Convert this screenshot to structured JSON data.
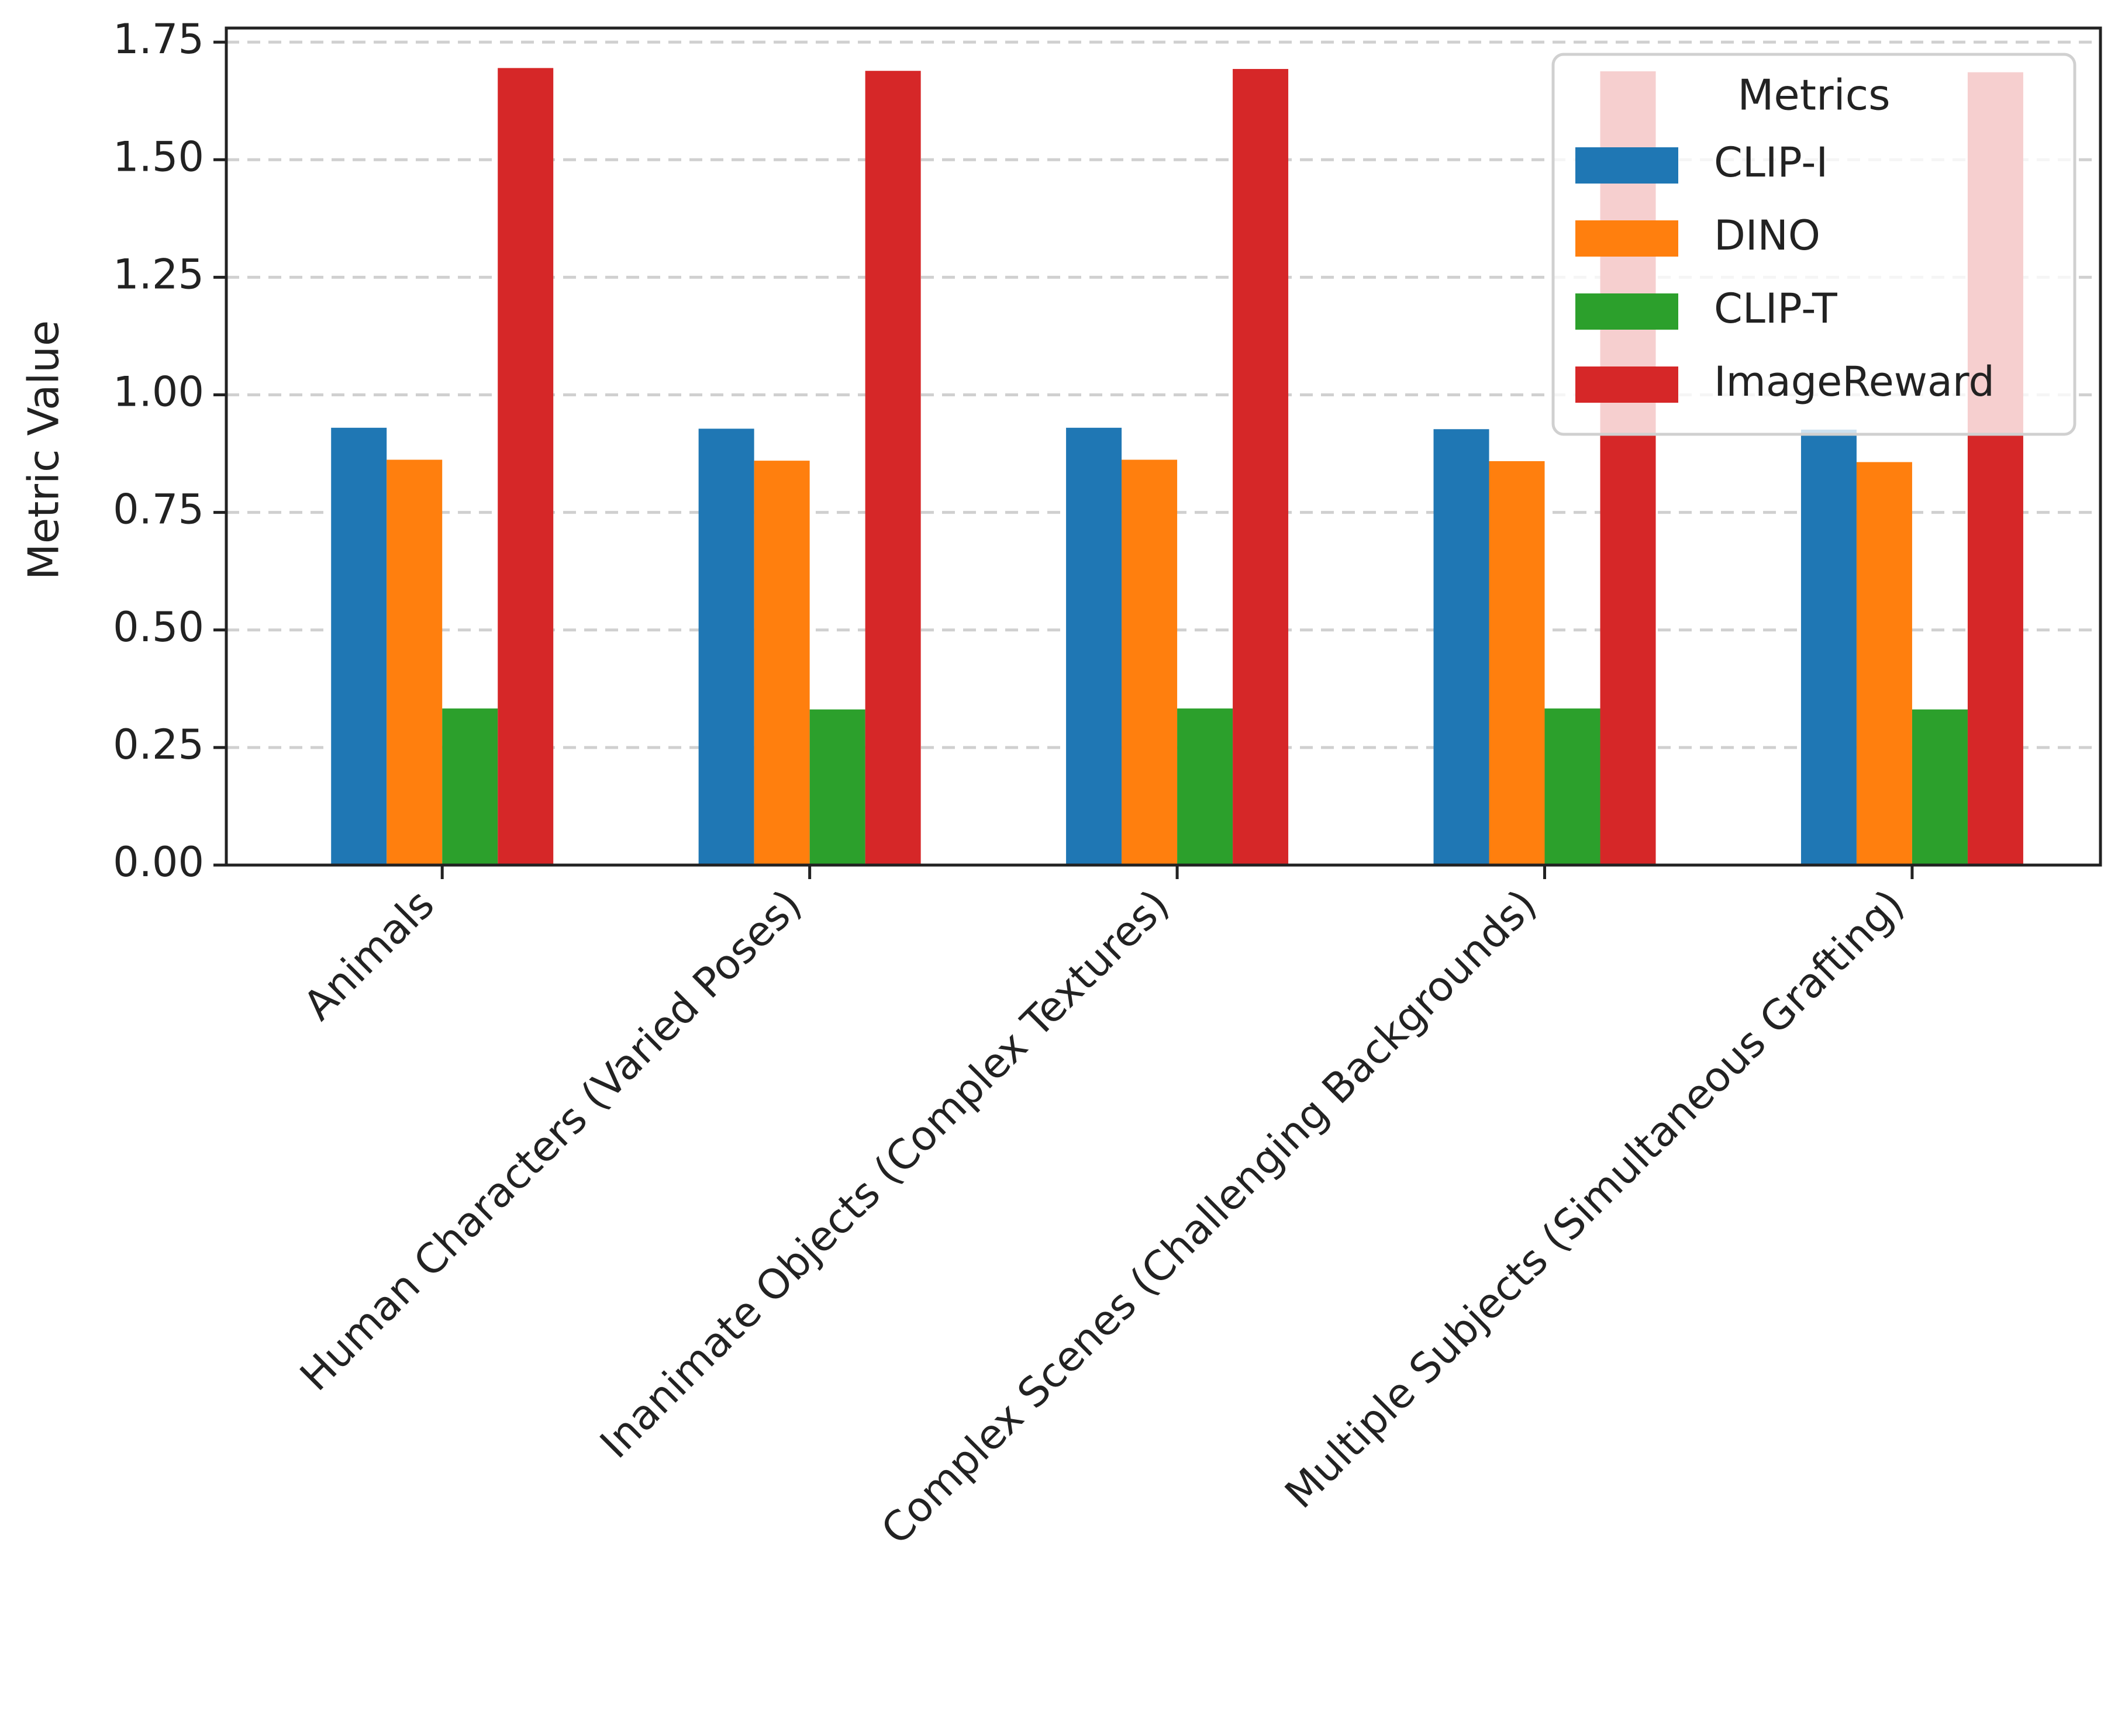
{
  "chart_data": {
    "type": "bar",
    "title": "",
    "xlabel": "",
    "ylabel": "Metric Value",
    "ylim": [
      0,
      1.78
    ],
    "yticks": [
      "0.00",
      "0.25",
      "0.50",
      "0.75",
      "1.00",
      "1.25",
      "1.50",
      "1.75"
    ],
    "grid": "horizontal dashed",
    "legend_position": "top-right",
    "legend_title": "Metrics",
    "categories": [
      "Animals",
      "Human Characters (Varied Poses)",
      "Inanimate Objects (Complex Textures)",
      "Complex Scenes (Challenging Backgrounds)",
      "Multiple Subjects (Simultaneous Grafting)"
    ],
    "series": [
      {
        "name": "CLIP-I",
        "color": "#1f77b4",
        "values": [
          0.93,
          0.928,
          0.93,
          0.927,
          0.926
        ]
      },
      {
        "name": "DINO",
        "color": "#ff7f0e",
        "values": [
          0.862,
          0.86,
          0.862,
          0.859,
          0.857
        ]
      },
      {
        "name": "CLIP-T",
        "color": "#2ca02c",
        "values": [
          0.333,
          0.331,
          0.333,
          0.333,
          0.331
        ]
      },
      {
        "name": "ImageReward",
        "color": "#d62728",
        "values": [
          1.695,
          1.689,
          1.693,
          1.688,
          1.686
        ]
      }
    ]
  }
}
